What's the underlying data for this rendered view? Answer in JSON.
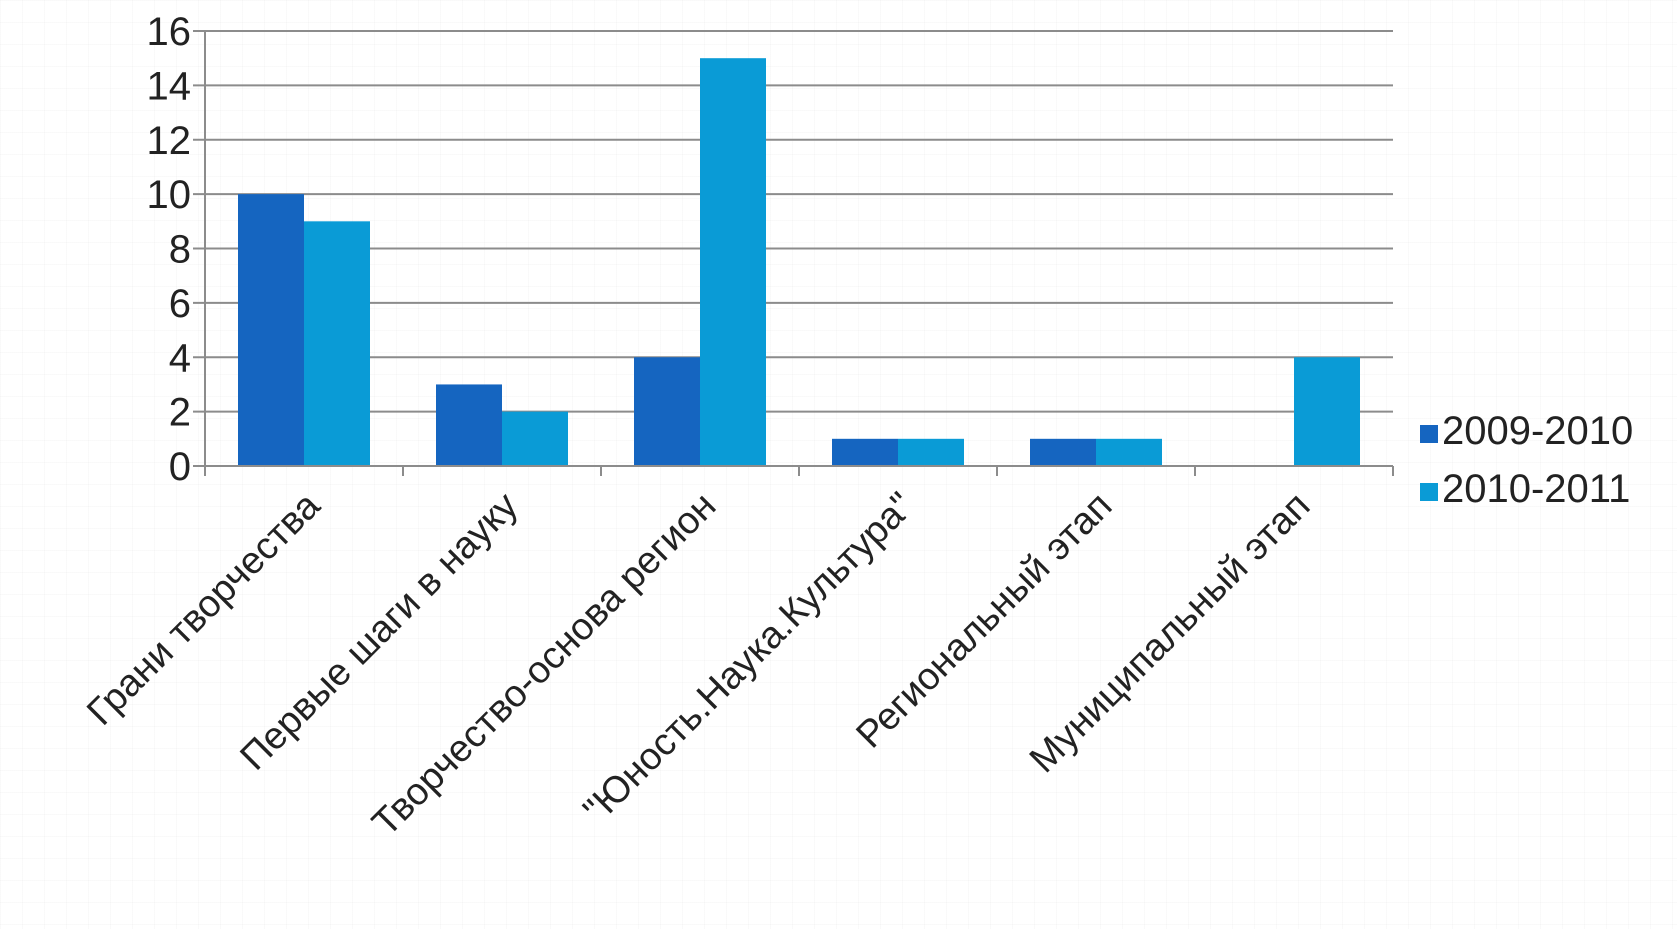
{
  "chart_data": {
    "type": "bar",
    "categories": [
      "Грани творчества",
      "Первые шаги в науку",
      "Творчество-основа регион",
      "\"Юность.Наука.Культура\"",
      "Региональный этап",
      "Муниципальный этап"
    ],
    "series": [
      {
        "name": "2009-2010",
        "values": [
          10,
          3,
          4,
          1,
          1,
          0
        ],
        "color": "#1565c0"
      },
      {
        "name": "2010-2011",
        "values": [
          9,
          2,
          15,
          1,
          1,
          4
        ],
        "color": "#0a9bd6"
      }
    ],
    "ylim": [
      0,
      16
    ],
    "yticks": [
      "0",
      "2",
      "4",
      "6",
      "8",
      "10",
      "12",
      "14",
      "16"
    ],
    "grid": true,
    "legend_position": "right",
    "title": "",
    "xlabel": "",
    "ylabel": ""
  }
}
